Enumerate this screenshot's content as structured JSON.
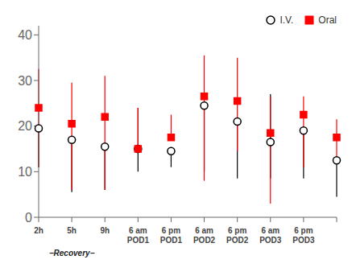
{
  "chart_data": {
    "type": "scatter",
    "categories": [
      "2h",
      "5h",
      "9h",
      "6 am\nPOD1",
      "6 pm\nPOD1",
      "6 am\nPOD2",
      "6 pm\nPOD2",
      "6 am\nPOD3",
      "6 pm\nPOD3",
      null
    ],
    "series": [
      {
        "name": "I.V.",
        "color": "black",
        "marker": "circle",
        "values": [
          19.5,
          17.0,
          15.5,
          15.0,
          14.5,
          24.5,
          21.0,
          16.5,
          19.0,
          12.5
        ],
        "yerr_low": [
          8.5,
          11.5,
          9.5,
          5.0,
          3.5,
          14.5,
          12.5,
          8.0,
          10.5,
          8.0
        ],
        "yerr_high": [
          0.0,
          0.0,
          0.0,
          9.0,
          0.0,
          0.0,
          0.0,
          10.5,
          0.0,
          0.0
        ]
      },
      {
        "name": "Oral",
        "color": "red",
        "marker": "square",
        "values": [
          24.0,
          20.5,
          22.0,
          15.0,
          17.5,
          26.5,
          25.5,
          18.5,
          22.5,
          17.5
        ],
        "yerr_low": [
          13.0,
          14.5,
          16.0,
          0.5,
          0.5,
          18.5,
          11.0,
          15.5,
          11.5,
          5.0
        ],
        "yerr_high": [
          8.5,
          9.0,
          9.0,
          9.0,
          5.0,
          9.0,
          9.5,
          8.0,
          4.0,
          4.0
        ]
      }
    ],
    "annotations": [
      {
        "text": "−Recovery−",
        "category": "5h"
      }
    ],
    "ylim": [
      0,
      42
    ],
    "yticks": [
      0,
      10,
      20,
      30,
      40
    ],
    "grid": false,
    "legend": "upper right"
  }
}
